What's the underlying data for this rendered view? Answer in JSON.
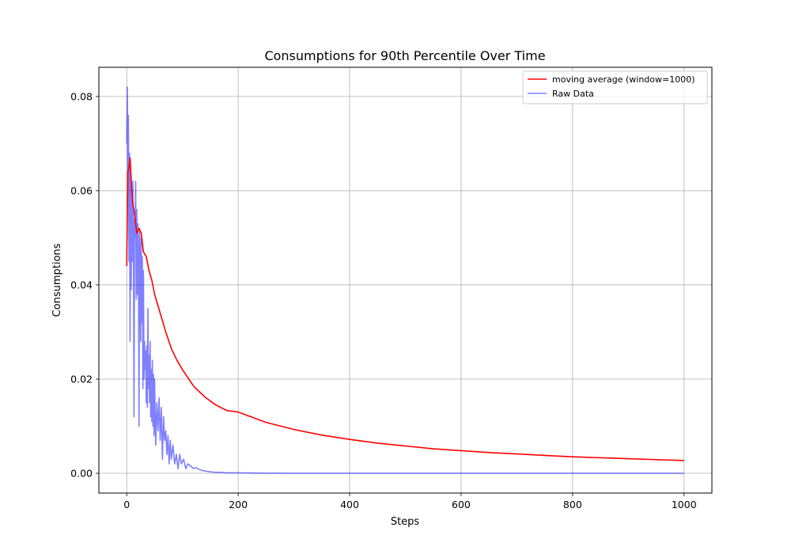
{
  "chart_data": {
    "type": "line",
    "title": "Consumptions for 90th Percentile Over Time",
    "xlabel": "Steps",
    "ylabel": "Consumptions",
    "xlim": [
      -50,
      1050
    ],
    "ylim": [
      -0.0042,
      0.0862
    ],
    "x_ticks": [
      0,
      200,
      400,
      600,
      800,
      1000
    ],
    "y_ticks": [
      0.0,
      0.02,
      0.04,
      0.06,
      0.08
    ],
    "x_tick_labels": [
      "0",
      "200",
      "400",
      "600",
      "800",
      "1000"
    ],
    "y_tick_labels": [
      "0.00",
      "0.02",
      "0.04",
      "0.06",
      "0.08"
    ],
    "grid": true,
    "legend_position": "top-right",
    "series": [
      {
        "name": "moving average (window=1000)",
        "color": "#ff0000",
        "opacity": 1.0,
        "x": [
          0,
          2,
          4,
          6,
          10,
          14,
          18,
          22,
          26,
          30,
          35,
          40,
          45,
          50,
          55,
          60,
          70,
          80,
          90,
          100,
          120,
          140,
          160,
          180,
          200,
          250,
          300,
          350,
          400,
          450,
          500,
          550,
          600,
          650,
          700,
          750,
          800,
          850,
          900,
          950,
          1000
        ],
        "y": [
          0.044,
          0.064,
          0.065,
          0.067,
          0.058,
          0.055,
          0.051,
          0.052,
          0.051,
          0.047,
          0.046,
          0.043,
          0.041,
          0.038,
          0.036,
          0.034,
          0.03,
          0.0265,
          0.024,
          0.022,
          0.0185,
          0.0162,
          0.0145,
          0.0133,
          0.013,
          0.0108,
          0.0093,
          0.0081,
          0.0072,
          0.0064,
          0.0058,
          0.0052,
          0.0048,
          0.0044,
          0.0041,
          0.0038,
          0.0035,
          0.0033,
          0.0031,
          0.0029,
          0.0027
        ]
      },
      {
        "name": "Raw Data",
        "color": "#0000ff",
        "opacity": 0.5,
        "x": [
          0,
          1,
          2,
          3,
          4,
          5,
          6,
          7,
          8,
          9,
          10,
          11,
          12,
          13,
          14,
          15,
          16,
          17,
          18,
          19,
          20,
          21,
          22,
          23,
          24,
          25,
          26,
          27,
          28,
          29,
          30,
          31,
          32,
          33,
          34,
          35,
          36,
          37,
          38,
          39,
          40,
          41,
          42,
          43,
          44,
          45,
          46,
          47,
          48,
          49,
          50,
          52,
          54,
          56,
          58,
          60,
          62,
          64,
          66,
          68,
          70,
          72,
          74,
          76,
          78,
          80,
          83,
          86,
          89,
          92,
          95,
          98,
          102,
          106,
          110,
          115,
          120,
          125,
          130,
          135,
          140,
          145,
          150,
          160,
          170,
          180,
          190,
          200,
          225,
          250,
          300,
          400,
          500,
          600,
          700,
          800,
          900,
          1000
        ],
        "y": [
          0.07,
          0.082,
          0.06,
          0.076,
          0.045,
          0.068,
          0.028,
          0.065,
          0.039,
          0.058,
          0.045,
          0.062,
          0.05,
          0.012,
          0.054,
          0.05,
          0.062,
          0.037,
          0.056,
          0.038,
          0.053,
          0.044,
          0.01,
          0.052,
          0.046,
          0.028,
          0.05,
          0.032,
          0.046,
          0.018,
          0.043,
          0.02,
          0.028,
          0.022,
          0.026,
          0.015,
          0.027,
          0.014,
          0.035,
          0.018,
          0.025,
          0.015,
          0.028,
          0.012,
          0.022,
          0.011,
          0.024,
          0.01,
          0.021,
          0.008,
          0.02,
          0.006,
          0.015,
          0.009,
          0.016,
          0.007,
          0.014,
          0.003,
          0.012,
          0.007,
          0.009,
          0.004,
          0.008,
          0.002,
          0.007,
          0.003,
          0.006,
          0.002,
          0.004,
          0.001,
          0.004,
          0.002,
          0.003,
          0.001,
          0.002,
          0.0015,
          0.001,
          0.0012,
          0.0008,
          0.0006,
          0.0005,
          0.0004,
          0.0003,
          0.0002,
          0.0002,
          0.0001,
          0.0001,
          0.0001,
          5e-05,
          2e-05,
          0.0,
          0.0,
          0.0,
          0.0,
          0.0,
          0.0,
          0.0,
          0.0
        ]
      }
    ]
  }
}
